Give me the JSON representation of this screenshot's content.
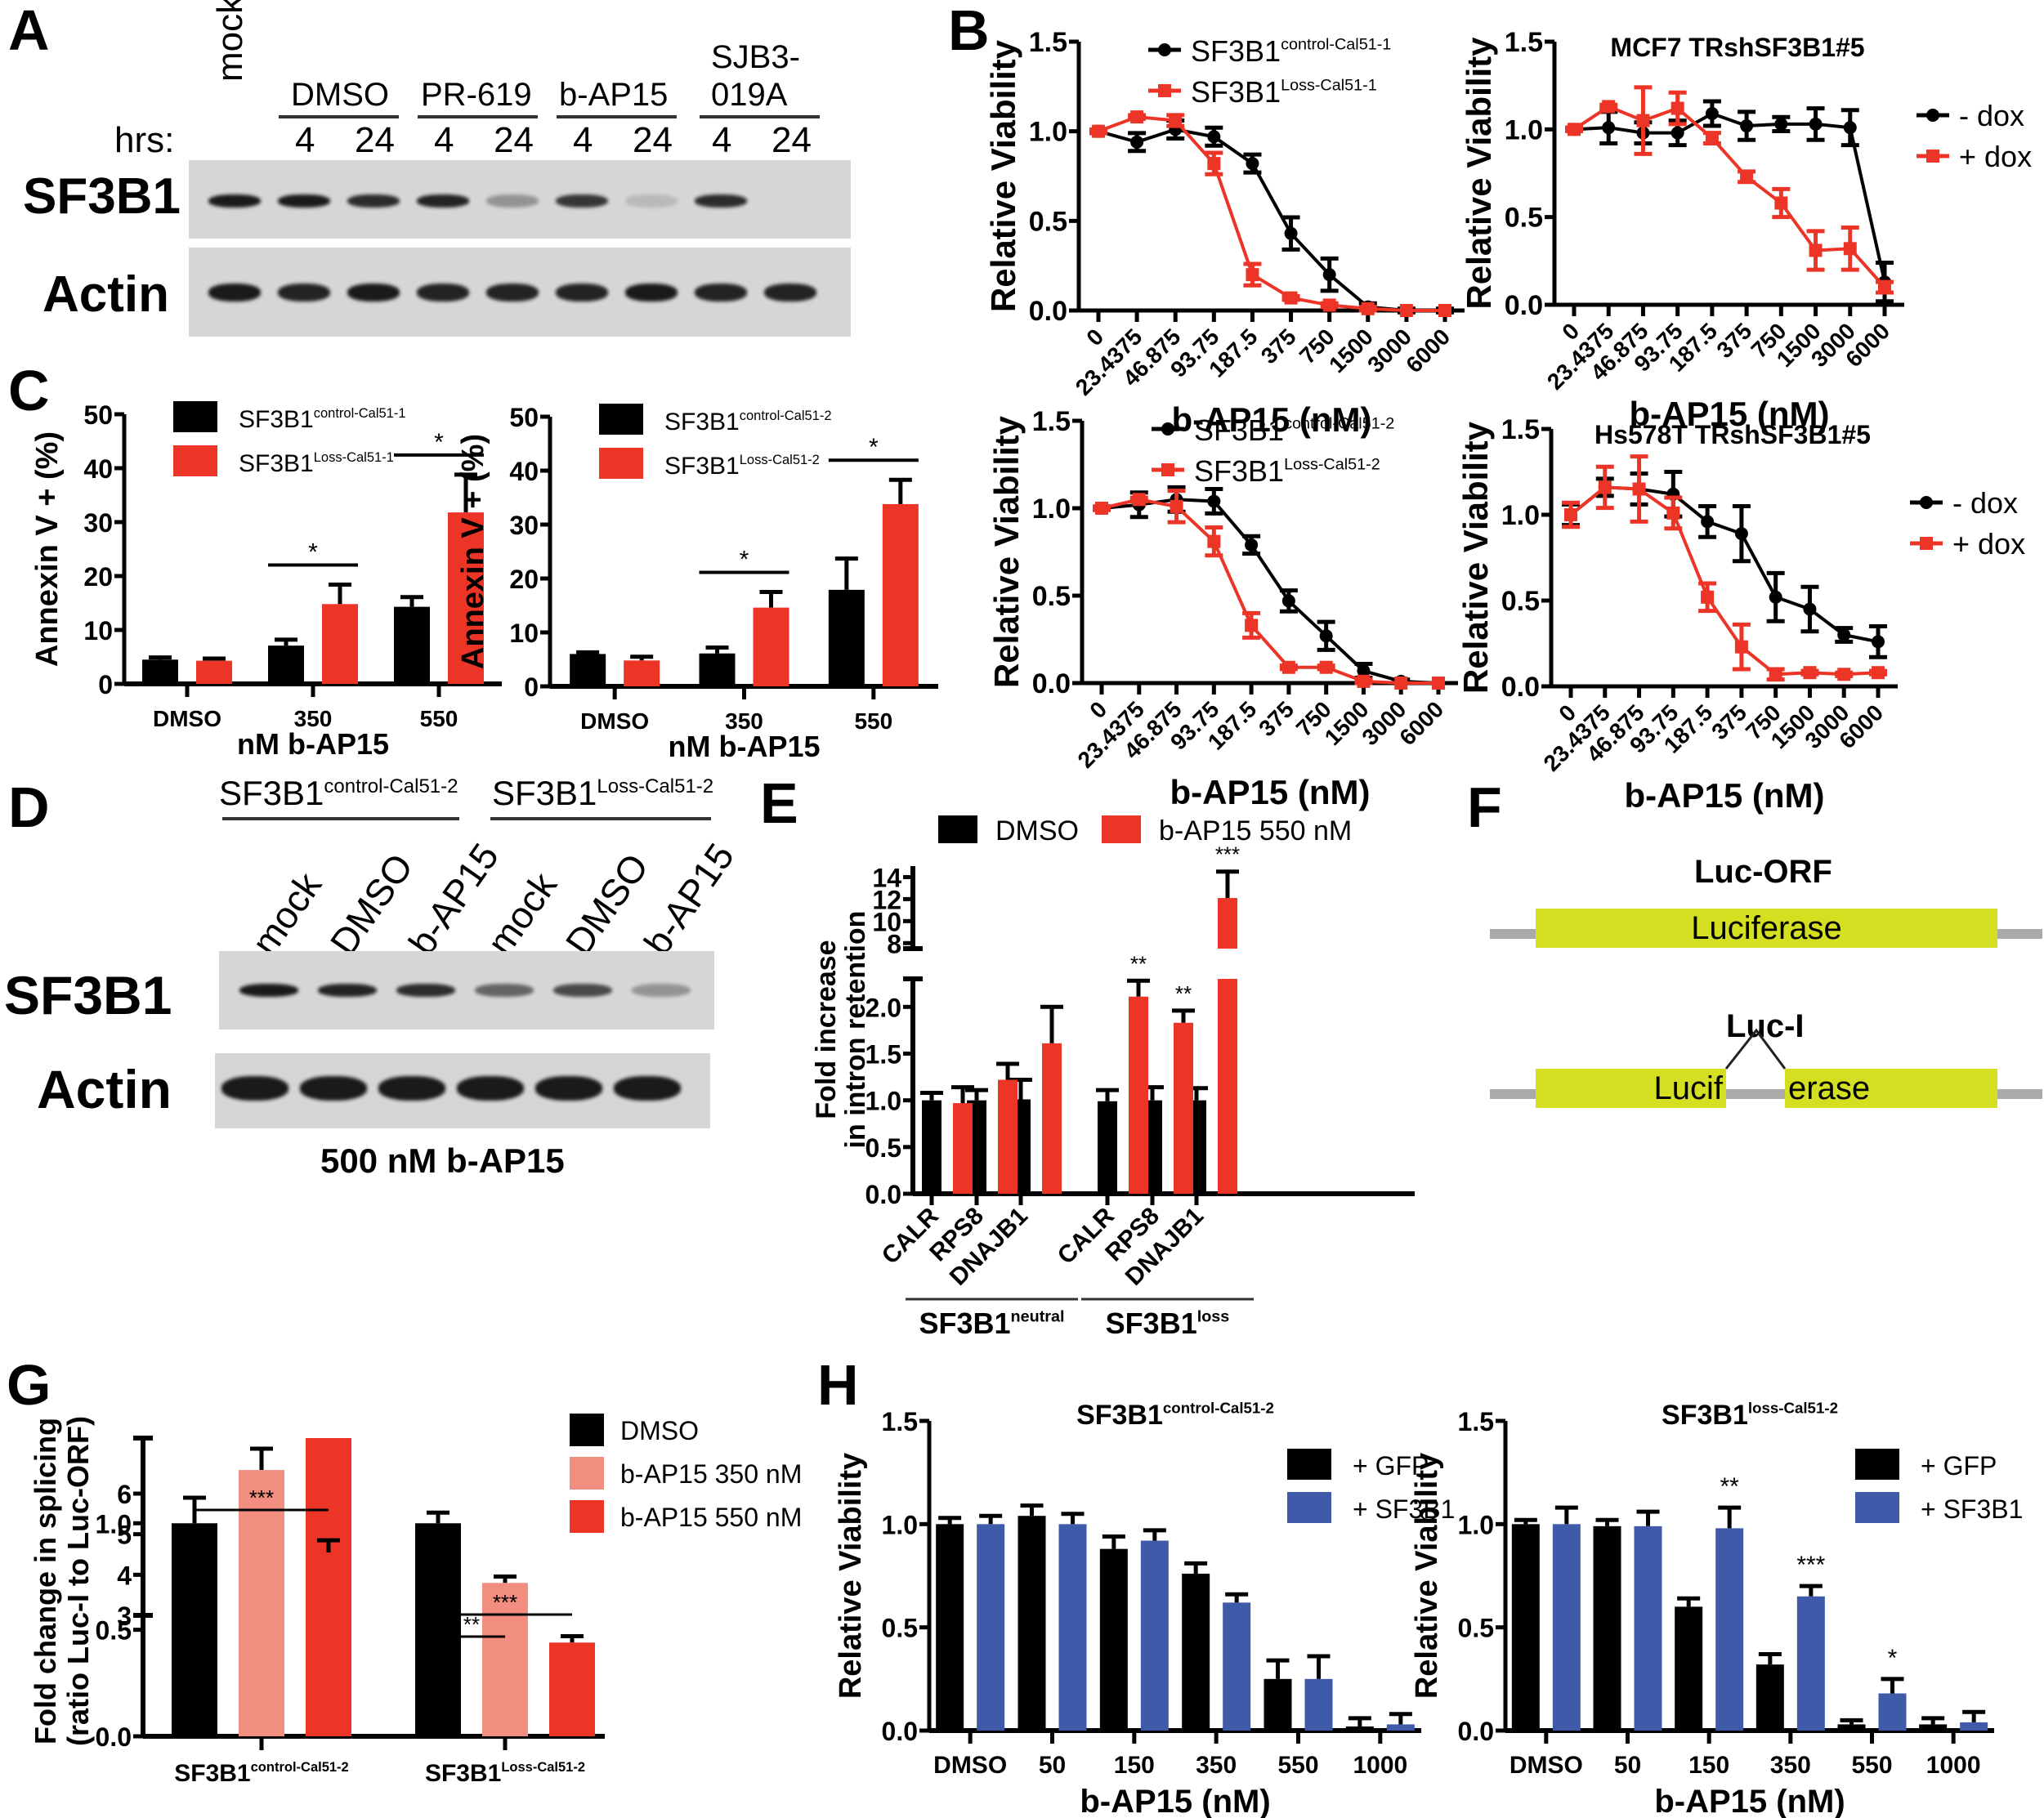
{
  "colors": {
    "black": "#000000",
    "red": "#ec3427",
    "pink": "#f28e7f",
    "blue": "#3f5aa8",
    "exon": "#d4df22",
    "intron": "#aaaaaa",
    "blot_bg": "#d6d6d8"
  },
  "panels": {
    "A": {
      "letter": "A",
      "mock_label": "mock",
      "hrs_label": "hrs:",
      "groups": [
        "DMSO",
        "PR-619",
        "b-AP15",
        "SJB3-",
        "019A"
      ],
      "group_names": [
        "DMSO",
        "PR-619",
        "b-AP15",
        "SJB3-019A"
      ],
      "hours": [
        "4",
        "24",
        "4",
        "24",
        "4",
        "24",
        "4",
        "24"
      ],
      "rows": [
        "SF3B1",
        "Actin"
      ],
      "sf3b1_band_intensity": [
        1.0,
        1.0,
        0.9,
        0.95,
        0.35,
        0.85,
        0.12,
        0.9,
        0.0
      ],
      "actin_band_intensity": [
        1.0,
        0.95,
        1.0,
        0.95,
        0.95,
        0.95,
        1.0,
        0.95,
        0.95
      ]
    },
    "B": {
      "letter": "B"
    },
    "C": {
      "letter": "C"
    },
    "D": {
      "letter": "D",
      "group1": {
        "base": "SF3B1",
        "sup": "control-Cal51-2"
      },
      "group2": {
        "base": "SF3B1",
        "sup": "Loss-Cal51-2"
      },
      "lanes": [
        "mock",
        "DMSO",
        "b-AP15",
        "mock",
        "DMSO",
        "b-AP15"
      ],
      "rows": [
        "SF3B1",
        "Actin"
      ],
      "sf3b1_band_intensity": [
        1.0,
        0.95,
        0.9,
        0.6,
        0.75,
        0.35
      ],
      "actin_band_intensity": [
        1.0,
        1.0,
        1.0,
        1.0,
        1.0,
        1.0
      ],
      "footer": "500 nM b-AP15"
    },
    "E": {
      "letter": "E"
    },
    "F": {
      "letter": "F",
      "orf_title": "Luc-ORF",
      "orf_label": "Luciferase",
      "intron_title": "Luc-I",
      "exon1_label": "Lucif",
      "exon2_label": "erase"
    },
    "G": {
      "letter": "G"
    },
    "H": {
      "letter": "H"
    }
  },
  "chart_data": [
    {
      "id": "B1",
      "type": "line",
      "title": "",
      "xlabel": "b-AP15 (nM)",
      "ylabel": "Relative Viability",
      "categories": [
        "0",
        "23.4375",
        "46.875",
        "93.75",
        "187.5",
        "375",
        "750",
        "1500",
        "3000",
        "6000"
      ],
      "ylim": [
        0,
        1.5
      ],
      "yticks": [
        "0.0",
        "0.5",
        "1.0",
        "1.5"
      ],
      "legend_position": "top",
      "series": [
        {
          "name": "SF3B1",
          "name_sup": "control-Cal51-1",
          "color": "#000000",
          "marker": "circle",
          "values": [
            1.0,
            0.94,
            1.01,
            0.97,
            0.82,
            0.43,
            0.2,
            0.02,
            0.0,
            0.0
          ],
          "errors": [
            0.01,
            0.05,
            0.05,
            0.05,
            0.05,
            0.09,
            0.09,
            0.02,
            0.01,
            0.01
          ]
        },
        {
          "name": "SF3B1",
          "name_sup": "Loss-Cal51-1",
          "color": "#ec3427",
          "marker": "square",
          "values": [
            1.0,
            1.08,
            1.06,
            0.82,
            0.2,
            0.07,
            0.03,
            0.01,
            0.0,
            0.0
          ],
          "errors": [
            0.01,
            0.01,
            0.03,
            0.06,
            0.06,
            0.01,
            0.01,
            0.01,
            0.0,
            0.0
          ]
        }
      ]
    },
    {
      "id": "B2",
      "type": "line",
      "title": "MCF7 TRshSF3B1#5",
      "xlabel": "b-AP15 (nM)",
      "ylabel": "Relative Viability",
      "categories": [
        "0",
        "23.4375",
        "46.875",
        "93.75",
        "187.5",
        "375",
        "750",
        "1500",
        "3000",
        "6000"
      ],
      "ylim": [
        0,
        1.5
      ],
      "yticks": [
        "0.0",
        "0.5",
        "1.0",
        "1.5"
      ],
      "legend_position": "right",
      "series": [
        {
          "name": "- dox",
          "color": "#000000",
          "marker": "circle",
          "values": [
            1.0,
            1.01,
            0.98,
            0.98,
            1.09,
            1.02,
            1.03,
            1.03,
            1.01,
            0.13
          ],
          "errors": [
            0.01,
            0.09,
            0.06,
            0.07,
            0.07,
            0.08,
            0.04,
            0.09,
            0.1,
            0.11
          ]
        },
        {
          "name": "+ dox",
          "color": "#ec3427",
          "marker": "square",
          "values": [
            1.0,
            1.13,
            1.05,
            1.12,
            0.95,
            0.73,
            0.58,
            0.31,
            0.32,
            0.1
          ],
          "errors": [
            0.01,
            0.01,
            0.19,
            0.09,
            0.03,
            0.03,
            0.08,
            0.11,
            0.12,
            0.03
          ]
        }
      ]
    },
    {
      "id": "B3",
      "type": "line",
      "title": "",
      "xlabel": "b-AP15 (nM)",
      "ylabel": "Relative Viability",
      "categories": [
        "0",
        "23.4375",
        "46.875",
        "93.75",
        "187.5",
        "375",
        "750",
        "1500",
        "3000",
        "6000"
      ],
      "ylim": [
        0,
        1.5
      ],
      "yticks": [
        "0.0",
        "0.5",
        "1.0",
        "1.5"
      ],
      "legend_position": "top",
      "series": [
        {
          "name": "SF3B1",
          "name_sup": "control-Cal51-2",
          "color": "#000000",
          "marker": "circle",
          "values": [
            1.0,
            1.02,
            1.05,
            1.04,
            0.79,
            0.47,
            0.27,
            0.07,
            0.01,
            0.0
          ],
          "errors": [
            0.01,
            0.07,
            0.07,
            0.07,
            0.05,
            0.06,
            0.08,
            0.04,
            0.01,
            0.0
          ]
        },
        {
          "name": "SF3B1",
          "name_sup": "Loss-Cal51-2",
          "color": "#ec3427",
          "marker": "square",
          "values": [
            1.0,
            1.05,
            1.01,
            0.81,
            0.33,
            0.09,
            0.09,
            0.01,
            0.0,
            0.0
          ],
          "errors": [
            0.01,
            0.01,
            0.09,
            0.08,
            0.07,
            0.01,
            0.01,
            0.01,
            0.0,
            0.0
          ]
        }
      ]
    },
    {
      "id": "B4",
      "type": "line",
      "title": "Hs578T TRshSF3B1#5",
      "xlabel": "b-AP15 (nM)",
      "ylabel": "Relative Viability",
      "categories": [
        "0",
        "23.4375",
        "46.875",
        "93.75",
        "187.5",
        "375",
        "750",
        "1500",
        "3000",
        "6000"
      ],
      "ylim": [
        0,
        1.5
      ],
      "yticks": [
        "0.0",
        "0.5",
        "1.0",
        "1.5"
      ],
      "legend_position": "right",
      "series": [
        {
          "name": "- dox",
          "color": "#000000",
          "marker": "circle",
          "values": [
            1.0,
            1.16,
            1.15,
            1.12,
            0.96,
            0.89,
            0.52,
            0.45,
            0.3,
            0.26
          ],
          "errors": [
            0.06,
            0.05,
            0.09,
            0.13,
            0.09,
            0.16,
            0.14,
            0.13,
            0.04,
            0.09
          ]
        },
        {
          "name": "+ dox",
          "color": "#ec3427",
          "marker": "square",
          "values": [
            1.0,
            1.16,
            1.15,
            1.01,
            0.52,
            0.23,
            0.07,
            0.08,
            0.07,
            0.08
          ],
          "errors": [
            0.07,
            0.12,
            0.19,
            0.09,
            0.08,
            0.13,
            0.03,
            0.01,
            0.01,
            0.01
          ]
        }
      ]
    },
    {
      "id": "C1",
      "type": "bar",
      "title": "",
      "xlabel": "nM b-AP15",
      "ylabel": "Annexin V + (%)",
      "categories": [
        "DMSO",
        "350",
        "550"
      ],
      "ylim": [
        0,
        50
      ],
      "yticks": [
        "0",
        "10",
        "20",
        "30",
        "40",
        "50"
      ],
      "legend_position": "top-left",
      "series": [
        {
          "name": "SF3B1",
          "name_sup": "control-Cal51-1",
          "color": "#000000",
          "values": [
            4.5,
            7.1,
            14.3
          ],
          "errors": [
            0.4,
            1.1,
            1.8
          ]
        },
        {
          "name": "SF3B1",
          "name_sup": "Loss-Cal51-1",
          "color": "#ec3427",
          "values": [
            4.3,
            14.8,
            31.8
          ],
          "errors": [
            0.4,
            3.6,
            7.0
          ]
        }
      ],
      "significance": [
        {
          "category": "350",
          "label": "*"
        },
        {
          "category": "550",
          "label": "*"
        }
      ]
    },
    {
      "id": "C2",
      "type": "bar",
      "title": "",
      "xlabel": "nM b-AP15",
      "ylabel": "Annexin V + (%)",
      "categories": [
        "DMSO",
        "350",
        "550"
      ],
      "ylim": [
        0,
        50
      ],
      "yticks": [
        "0",
        "10",
        "20",
        "30",
        "40",
        "50"
      ],
      "legend_position": "top-left",
      "series": [
        {
          "name": "SF3B1",
          "name_sup": "control-Cal51-2",
          "color": "#000000",
          "values": [
            6.0,
            6.1,
            17.9
          ],
          "errors": [
            0.3,
            1.1,
            5.8
          ]
        },
        {
          "name": "SF3B1",
          "name_sup": "Loss-Cal51-2",
          "color": "#ec3427",
          "values": [
            4.8,
            14.6,
            33.8
          ],
          "errors": [
            0.7,
            2.9,
            4.5
          ]
        }
      ],
      "significance": [
        {
          "category": "350",
          "label": "*"
        },
        {
          "category": "550",
          "label": "*"
        }
      ]
    },
    {
      "id": "E",
      "type": "bar",
      "title": "",
      "xlabel": "",
      "ylabel": "Fold increase in intron retention",
      "ylabel_lines": [
        "Fold increase",
        "in intron retention"
      ],
      "categories": [
        "CALR",
        "RPS8",
        "DNAJB1",
        "CALR",
        "RPS8",
        "DNAJB1"
      ],
      "category_groups": [
        {
          "base": "SF3B1",
          "sup": "neutral",
          "span": [
            0,
            2
          ]
        },
        {
          "base": "SF3B1",
          "sup": "loss",
          "span": [
            3,
            5
          ]
        }
      ],
      "ylim_lower": [
        0,
        2.3
      ],
      "yticks_lower": [
        "0.0",
        "0.5",
        "1.0",
        "1.5",
        "2.0"
      ],
      "ylim_upper": [
        7.5,
        15
      ],
      "yticks_upper": [
        "8",
        "10",
        "12",
        "14"
      ],
      "broken_axis": true,
      "legend_position": "top",
      "series": [
        {
          "name": "DMSO",
          "color": "#000000",
          "values": [
            1.0,
            1.0,
            1.01,
            0.99,
            1.0,
            1.0
          ],
          "errors": [
            0.08,
            0.11,
            0.21,
            0.12,
            0.14,
            0.13
          ]
        },
        {
          "name": "b-AP15 550 nM",
          "color": "#ec3427",
          "values": [
            0.97,
            1.22,
            1.61,
            2.11,
            1.83,
            12.1
          ],
          "errors": [
            0.17,
            0.17,
            0.39,
            0.17,
            0.13,
            2.4
          ]
        }
      ],
      "significance": [
        {
          "category_index": 3,
          "label": "**"
        },
        {
          "category_index": 4,
          "label": "**"
        },
        {
          "category_index": 5,
          "label": "***"
        }
      ]
    },
    {
      "id": "G",
      "type": "bar",
      "title": "",
      "xlabel": "",
      "ylabel": "Fold change in splicing (ratio Luc-I to Luc-ORF)",
      "ylabel_lines": [
        "Fold change in splicing",
        "(ratio Luc-I to Luc-ORF)"
      ],
      "categories": [
        {
          "base": "SF3B1",
          "sup": "control-Cal51-2"
        },
        {
          "base": "SF3B1",
          "sup": "Loss-Cal51-2"
        }
      ],
      "ylim_lower": [
        0,
        1.4
      ],
      "yticks_lower": [
        "0.0",
        "0.5",
        "1.0"
      ],
      "ylim_upper": [
        3,
        6
      ],
      "yticks_upper": [
        "3",
        "4",
        "5",
        "6"
      ],
      "broken_axis": true,
      "legend_position": "right",
      "series": [
        {
          "name": "DMSO",
          "color": "#000000",
          "values": [
            1.0,
            1.0
          ],
          "errors": [
            0.12,
            0.05
          ]
        },
        {
          "name": "b-AP15 350 nM",
          "color": "#f28e7f",
          "values": [
            1.25,
            0.72
          ],
          "errors": [
            0.1,
            0.03
          ]
        },
        {
          "name": "b-AP15 550 nM",
          "color": "#ec3427",
          "values": [
            4.55,
            0.44
          ],
          "errors": [
            0.3,
            0.03
          ]
        }
      ],
      "significance": [
        {
          "group": 0,
          "from": 0,
          "to": 2,
          "label": "***"
        },
        {
          "group": 1,
          "from": 0,
          "to": 1,
          "label": "**"
        },
        {
          "group": 1,
          "from": 0,
          "to": 2,
          "label": "***"
        }
      ]
    },
    {
      "id": "H1",
      "type": "bar",
      "title": "SF3B1",
      "title_sup": "control-Cal51-2",
      "xlabel": "b-AP15 (nM)",
      "ylabel": "Relative Viability",
      "categories": [
        "DMSO",
        "50",
        "150",
        "350",
        "550",
        "1000"
      ],
      "ylim": [
        0,
        1.5
      ],
      "yticks": [
        "0.0",
        "0.5",
        "1.0",
        "1.5"
      ],
      "legend_position": "right",
      "series": [
        {
          "name": "+ GFP",
          "color": "#000000",
          "values": [
            1.0,
            1.04,
            0.88,
            0.76,
            0.25,
            0.02
          ],
          "errors": [
            0.03,
            0.05,
            0.06,
            0.05,
            0.09,
            0.04
          ]
        },
        {
          "name": "+ SF3B1",
          "color": "#3f5aa8",
          "values": [
            1.0,
            1.0,
            0.92,
            0.62,
            0.25,
            0.03
          ],
          "errors": [
            0.04,
            0.05,
            0.05,
            0.04,
            0.11,
            0.05
          ]
        }
      ],
      "significance": []
    },
    {
      "id": "H2",
      "type": "bar",
      "title": "SF3B1",
      "title_sup": "loss-Cal51-2",
      "xlabel": "b-AP15 (nM)",
      "ylabel": "Relative Viability",
      "categories": [
        "DMSO",
        "50",
        "150",
        "350",
        "550",
        "1000"
      ],
      "ylim": [
        0,
        1.5
      ],
      "yticks": [
        "0.0",
        "0.5",
        "1.0",
        "1.5"
      ],
      "legend_position": "right",
      "series": [
        {
          "name": "+ GFP",
          "color": "#000000",
          "values": [
            1.0,
            0.99,
            0.6,
            0.32,
            0.03,
            0.03
          ],
          "errors": [
            0.02,
            0.03,
            0.04,
            0.05,
            0.02,
            0.03
          ]
        },
        {
          "name": "+ SF3B1",
          "color": "#3f5aa8",
          "values": [
            1.0,
            0.99,
            0.98,
            0.65,
            0.18,
            0.04
          ],
          "errors": [
            0.08,
            0.07,
            0.1,
            0.05,
            0.07,
            0.05
          ]
        }
      ],
      "significance": [
        {
          "category_index": 2,
          "label": "**"
        },
        {
          "category_index": 3,
          "label": "***"
        },
        {
          "category_index": 4,
          "label": "*"
        }
      ]
    }
  ]
}
